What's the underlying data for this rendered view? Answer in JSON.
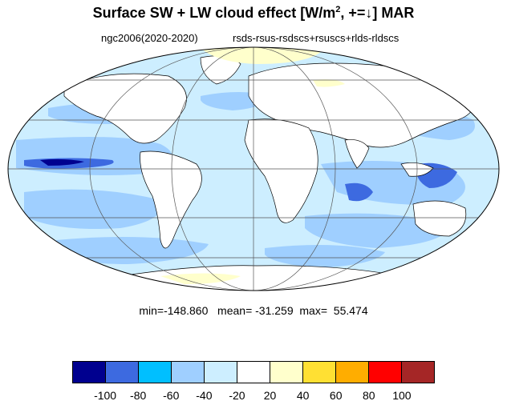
{
  "title": {
    "prefix": "Surface SW + LW cloud effect [W/m",
    "sup": "2",
    "suffix": ", +=↓]  MAR"
  },
  "subtitle": {
    "left": "ngc2006(2020-2020)",
    "right": "rsds-rsus-rsdscs+rsuscs+rlds-rldscs"
  },
  "stats": {
    "text": "min=-148.860   mean= -31.259  max=  55.474"
  },
  "colorbar": {
    "colors": [
      "#00008f",
      "#3d6ae0",
      "#00bfff",
      "#9fcfff",
      "#cdeeff",
      "#ffffff",
      "#ffffcc",
      "#ffe033",
      "#ffad00",
      "#ff0000",
      "#a52626"
    ],
    "labels": [
      "-100",
      "-80",
      "-60",
      "-40",
      "-20",
      "20",
      "40",
      "60",
      "80",
      "100"
    ]
  },
  "map_colors": {
    "ocean_base": "#cdeeff",
    "light_blue": "#9fcfff",
    "mid_blue": "#3d6ae0",
    "dark_blue": "#00008f",
    "land": "#ffffff",
    "yellow": "#ffffcc"
  }
}
